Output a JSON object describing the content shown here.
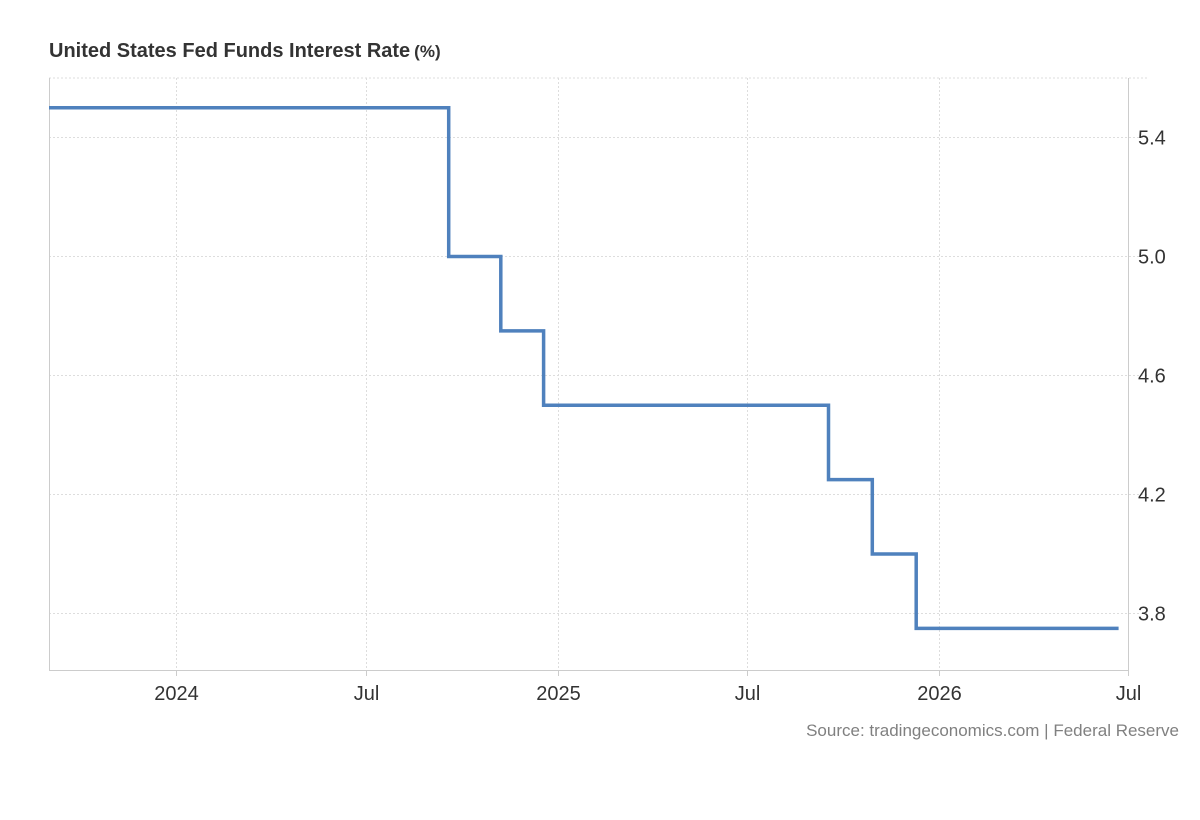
{
  "chart_data": {
    "type": "line",
    "step": true,
    "title": "United States Fed Funds Interest Rate",
    "unit": "(%)",
    "source": "Source: tradingeconomics.com | Federal Reserve",
    "x_ticks": [
      {
        "date": "2024-01-01",
        "label": "2024"
      },
      {
        "date": "2024-07-01",
        "label": "Jul"
      },
      {
        "date": "2025-01-01",
        "label": "2025"
      },
      {
        "date": "2025-07-01",
        "label": "Jul"
      },
      {
        "date": "2026-01-01",
        "label": "2026"
      },
      {
        "date": "2026-07-01",
        "label": "Jul"
      }
    ],
    "xlim": [
      "2023-09-01",
      "2026-07-01"
    ],
    "y_ticks": [
      3.8,
      4.2,
      4.6,
      5.0,
      5.4
    ],
    "ylim": [
      3.61,
      5.6
    ],
    "y_axis_side": "right",
    "grid": true,
    "line_color": "#4f81bd",
    "series": [
      {
        "x": [
          "2023-09-01",
          "2024-09-18",
          "2024-11-07",
          "2024-12-18",
          "2025-09-17",
          "2025-10-29",
          "2025-12-10",
          "2026-06-22"
        ],
        "values": [
          5.5,
          5.0,
          4.75,
          4.5,
          4.25,
          4.0,
          3.75,
          3.75
        ]
      }
    ]
  }
}
